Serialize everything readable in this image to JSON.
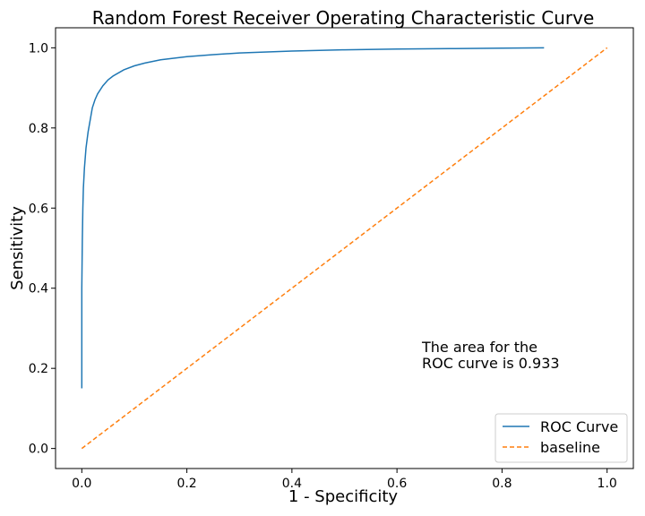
{
  "chart_data": {
    "type": "line",
    "title": "Random Forest Receiver Operating Characteristic Curve",
    "xlabel": "1 - Specificity",
    "ylabel": "Sensitivity",
    "xlim": [
      -0.05,
      1.05
    ],
    "ylim": [
      -0.05,
      1.05
    ],
    "xticks": [
      0.0,
      0.2,
      0.4,
      0.6,
      0.8,
      1.0
    ],
    "yticks": [
      0.0,
      0.2,
      0.4,
      0.6,
      0.8,
      1.0
    ],
    "xtick_labels": [
      "0.0",
      "0.2",
      "0.4",
      "0.6",
      "0.8",
      "1.0"
    ],
    "ytick_labels": [
      "0.0",
      "0.2",
      "0.4",
      "0.6",
      "0.8",
      "1.0"
    ],
    "grid": false,
    "legend_position": "lower-right",
    "annotation": [
      "The area for the",
      "ROC curve is 0.933"
    ],
    "series": [
      {
        "name": "ROC Curve",
        "color": "#1f77b4",
        "style": "solid",
        "x": [
          0.0,
          0.0,
          0.001,
          0.002,
          0.003,
          0.005,
          0.008,
          0.012,
          0.016,
          0.02,
          0.025,
          0.03,
          0.04,
          0.05,
          0.06,
          0.08,
          0.1,
          0.12,
          0.15,
          0.2,
          0.25,
          0.3,
          0.4,
          0.5,
          0.6,
          0.7,
          0.8,
          0.88
        ],
        "y": [
          0.15,
          0.4,
          0.52,
          0.6,
          0.65,
          0.7,
          0.75,
          0.79,
          0.82,
          0.85,
          0.87,
          0.885,
          0.905,
          0.92,
          0.93,
          0.945,
          0.955,
          0.962,
          0.97,
          0.978,
          0.983,
          0.987,
          0.992,
          0.995,
          0.997,
          0.998,
          0.999,
          1.0
        ]
      },
      {
        "name": "baseline",
        "color": "#ff7f0e",
        "style": "dashed",
        "x": [
          0.0,
          1.0
        ],
        "y": [
          0.0,
          1.0
        ]
      }
    ]
  }
}
